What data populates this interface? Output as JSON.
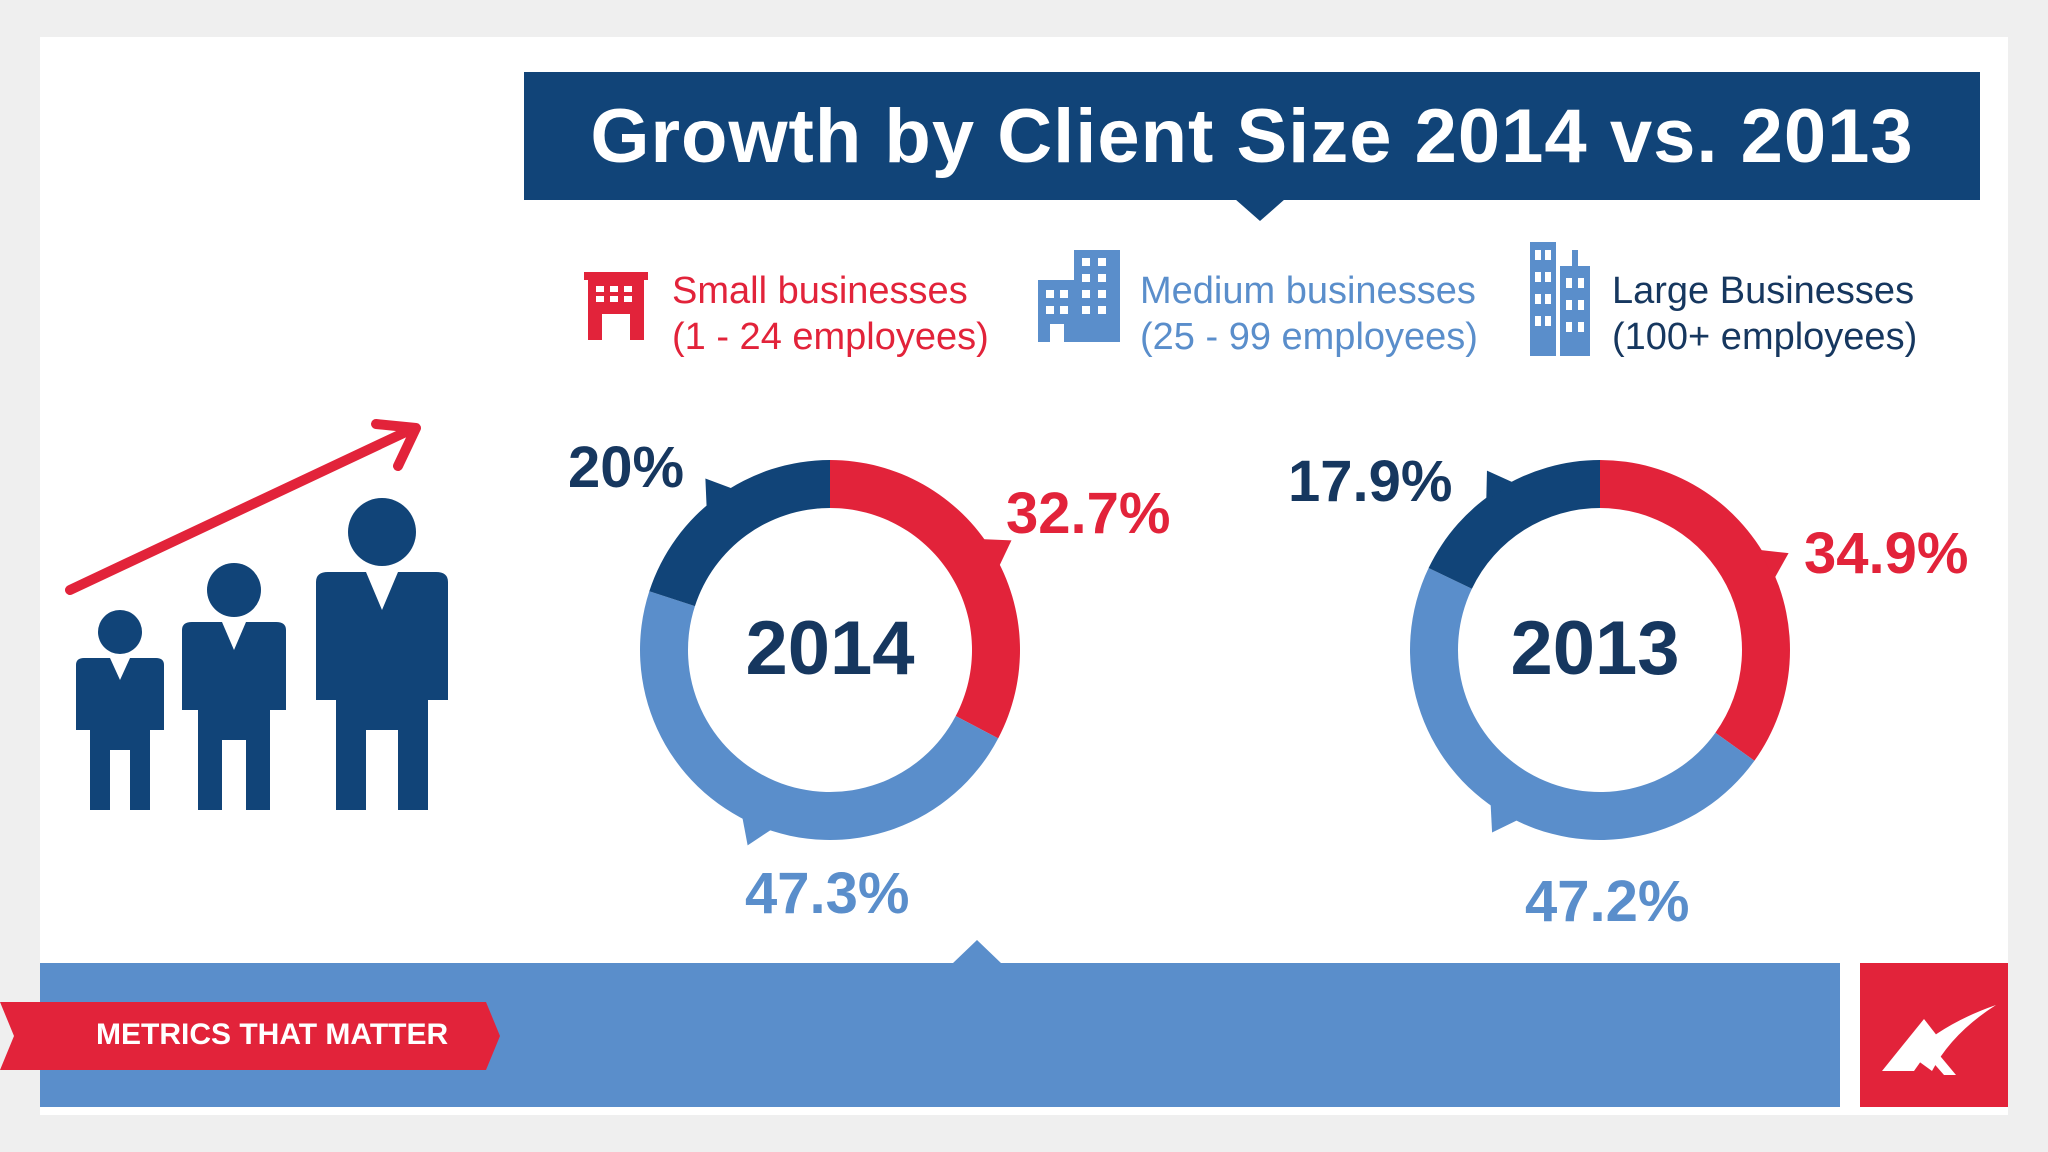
{
  "title": "Growth by Client Size 2014 vs. 2013",
  "legend": [
    {
      "label": "Small businesses",
      "sub": "(1 - 24 employees)",
      "color": "#e2233a",
      "icon": "small-building-icon"
    },
    {
      "label": "Medium  businesses",
      "sub": "(25 - 99 employees)",
      "color": "#5a8ecb",
      "icon": "medium-building-icon"
    },
    {
      "label": "Large Businesses",
      "sub": "(100+ employees)",
      "color": "#16375f",
      "icon": "large-building-icon"
    }
  ],
  "colors": {
    "small": "#e2233a",
    "medium": "#5a8ecb",
    "large": "#114478",
    "title_bg": "#114478",
    "band": "#5a8ecb"
  },
  "chart_data": [
    {
      "type": "pie",
      "center_label": "2014",
      "categories": [
        "Small businesses",
        "Medium businesses",
        "Large Businesses"
      ],
      "values": [
        32.7,
        47.3,
        20
      ],
      "labels": [
        "32.7%",
        "47.3%",
        "20%"
      ]
    },
    {
      "type": "pie",
      "center_label": "2013",
      "categories": [
        "Small businesses",
        "Medium businesses",
        "Large Businesses"
      ],
      "values": [
        34.9,
        47.2,
        17.9
      ],
      "labels": [
        "34.9%",
        "47.2%",
        "17.9%"
      ]
    }
  ],
  "footer": {
    "tag": "METRICS THAT MATTER",
    "logo_icon": "brand-logo-icon"
  },
  "illustration_icon": "growth-people-icon"
}
